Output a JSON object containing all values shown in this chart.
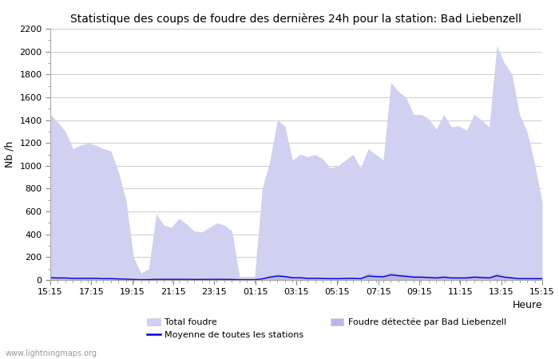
{
  "title": "Statistique des coups de foudre des dernières 24h pour la station: Bad Liebenzell",
  "xlabel": "Heure",
  "ylabel": "Nb /h",
  "watermark": "www.lightningmaps.org",
  "ylim": [
    0,
    2200
  ],
  "yticks": [
    0,
    200,
    400,
    600,
    800,
    1000,
    1200,
    1400,
    1600,
    1800,
    2000,
    2200
  ],
  "xtick_labels": [
    "15:15",
    "17:15",
    "19:15",
    "21:15",
    "23:15",
    "01:15",
    "03:15",
    "05:15",
    "07:15",
    "09:15",
    "11:15",
    "13:15",
    "15:15"
  ],
  "total_foudre_color": "#d0d0f0",
  "detected_color": "#b8b8e8",
  "moyenne_color": "#0000cc",
  "background_color": "#ffffff",
  "grid_color": "#cccccc",
  "total_foudre": [
    1450,
    1380,
    1300,
    1150,
    1180,
    1200,
    1180,
    1150,
    1130,
    950,
    700,
    200,
    60,
    100,
    580,
    480,
    460,
    540,
    490,
    430,
    420,
    460,
    500,
    480,
    430,
    30,
    30,
    30,
    800,
    1040,
    1400,
    1350,
    1050,
    1100,
    1080,
    1100,
    1060,
    980,
    1000,
    1050,
    1100,
    980,
    1150,
    1100,
    1050,
    1730,
    1650,
    1600,
    1450,
    1450,
    1410,
    1320,
    1450,
    1340,
    1350,
    1310,
    1450,
    1400,
    1340,
    2050,
    1900,
    1800,
    1450,
    1300,
    1020,
    680
  ],
  "detected_foudre": [
    30,
    28,
    25,
    22,
    20,
    22,
    20,
    18,
    18,
    15,
    12,
    8,
    5,
    6,
    10,
    10,
    10,
    10,
    10,
    8,
    8,
    10,
    10,
    10,
    8,
    5,
    5,
    5,
    15,
    40,
    50,
    45,
    30,
    30,
    25,
    25,
    22,
    18,
    20,
    22,
    25,
    18,
    60,
    50,
    45,
    70,
    55,
    50,
    40,
    40,
    35,
    30,
    40,
    30,
    30,
    30,
    40,
    35,
    30,
    60,
    40,
    30,
    20,
    20,
    20,
    20
  ],
  "moyenne_line": [
    20,
    18,
    18,
    15,
    15,
    15,
    15,
    12,
    12,
    10,
    8,
    5,
    3,
    4,
    6,
    6,
    6,
    6,
    6,
    5,
    5,
    6,
    6,
    6,
    5,
    3,
    3,
    3,
    10,
    25,
    35,
    30,
    20,
    20,
    15,
    15,
    14,
    12,
    12,
    14,
    15,
    12,
    35,
    30,
    28,
    45,
    38,
    32,
    25,
    25,
    22,
    18,
    25,
    18,
    18,
    18,
    25,
    22,
    18,
    38,
    25,
    18,
    12,
    12,
    12,
    12
  ],
  "legend_total": "Total foudre",
  "legend_detected": "Foudre détectée par Bad Liebenzell",
  "legend_moyenne": "Moyenne de toutes les stations"
}
